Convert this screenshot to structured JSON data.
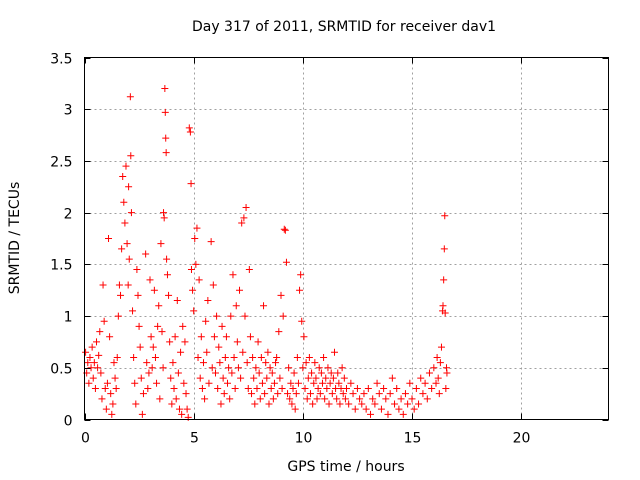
{
  "chart_data": {
    "type": "scatter",
    "title": "Day 317 of 2011, SRMTID for receiver dav1",
    "xlabel": "GPS time / hours",
    "ylabel": "SRMTID / TECUs",
    "xlim": [
      0,
      24
    ],
    "ylim": [
      0,
      3.5
    ],
    "x_ticks": [
      0,
      5,
      10,
      15,
      20
    ],
    "x_tick_labels": [
      "0",
      "5",
      "10",
      "15",
      "20"
    ],
    "y_ticks": [
      0,
      0.5,
      1,
      1.5,
      2,
      2.5,
      3,
      3.5
    ],
    "y_tick_labels": [
      "0",
      "0.5",
      "1",
      "1.5",
      "2",
      "2.5",
      "3",
      "3.5"
    ],
    "grid": true,
    "series": [
      {
        "name": "dav1",
        "marker": "+",
        "color": "#ff0000",
        "points": [
          [
            0.05,
            0.65
          ],
          [
            0.1,
            0.45
          ],
          [
            0.15,
            0.55
          ],
          [
            0.2,
            0.35
          ],
          [
            0.25,
            0.6
          ],
          [
            0.3,
            0.5
          ],
          [
            0.35,
            0.7
          ],
          [
            0.4,
            0.4
          ],
          [
            0.45,
            0.55
          ],
          [
            0.5,
            0.3
          ],
          [
            0.55,
            0.75
          ],
          [
            0.6,
            0.5
          ],
          [
            0.65,
            0.62
          ],
          [
            0.7,
            0.85
          ],
          [
            0.75,
            0.45
          ],
          [
            0.8,
            0.2
          ],
          [
            0.85,
            1.3
          ],
          [
            0.9,
            0.95
          ],
          [
            0.95,
            0.3
          ],
          [
            1.0,
            0.1
          ],
          [
            1.05,
            0.35
          ],
          [
            1.1,
            1.75
          ],
          [
            1.15,
            0.8
          ],
          [
            1.2,
            0.25
          ],
          [
            1.25,
            0.05
          ],
          [
            1.3,
            0.15
          ],
          [
            1.35,
            0.55
          ],
          [
            1.4,
            0.4
          ],
          [
            1.45,
            0.3
          ],
          [
            1.5,
            0.6
          ],
          [
            1.55,
            1.0
          ],
          [
            1.6,
            1.3
          ],
          [
            1.65,
            1.2
          ],
          [
            1.7,
            1.65
          ],
          [
            1.75,
            2.35
          ],
          [
            1.8,
            2.1
          ],
          [
            1.85,
            1.9
          ],
          [
            1.9,
            2.45
          ],
          [
            1.95,
            1.7
          ],
          [
            2.0,
            1.3
          ],
          [
            2.02,
            2.25
          ],
          [
            2.05,
            1.55
          ],
          [
            2.1,
            3.12
          ],
          [
            2.12,
            2.55
          ],
          [
            2.15,
            2.0
          ],
          [
            2.2,
            1.05
          ],
          [
            2.25,
            0.6
          ],
          [
            2.3,
            0.35
          ],
          [
            2.35,
            0.15
          ],
          [
            2.4,
            1.45
          ],
          [
            2.45,
            1.2
          ],
          [
            2.5,
            0.9
          ],
          [
            2.55,
            0.7
          ],
          [
            2.6,
            0.4
          ],
          [
            2.65,
            0.05
          ],
          [
            2.7,
            0.25
          ],
          [
            2.8,
            1.6
          ],
          [
            2.85,
            0.55
          ],
          [
            2.9,
            0.3
          ],
          [
            2.95,
            0.45
          ],
          [
            3.0,
            1.35
          ],
          [
            3.05,
            0.8
          ],
          [
            3.1,
            0.5
          ],
          [
            3.15,
            0.7
          ],
          [
            3.2,
            1.25
          ],
          [
            3.25,
            0.6
          ],
          [
            3.3,
            0.35
          ],
          [
            3.35,
            0.9
          ],
          [
            3.4,
            1.1
          ],
          [
            3.45,
            0.2
          ],
          [
            3.5,
            1.7
          ],
          [
            3.55,
            0.85
          ],
          [
            3.6,
            0.5
          ],
          [
            3.62,
            2.0
          ],
          [
            3.65,
            1.95
          ],
          [
            3.68,
            3.2
          ],
          [
            3.7,
            2.97
          ],
          [
            3.72,
            2.72
          ],
          [
            3.74,
            2.58
          ],
          [
            3.76,
            1.55
          ],
          [
            3.8,
            1.4
          ],
          [
            3.85,
            1.2
          ],
          [
            3.9,
            0.75
          ],
          [
            3.95,
            0.4
          ],
          [
            4.0,
            0.15
          ],
          [
            4.05,
            0.55
          ],
          [
            4.1,
            0.3
          ],
          [
            4.15,
            0.8
          ],
          [
            4.2,
            0.2
          ],
          [
            4.25,
            1.15
          ],
          [
            4.3,
            0.45
          ],
          [
            4.35,
            0.1
          ],
          [
            4.4,
            0.65
          ],
          [
            4.45,
            0.05
          ],
          [
            4.5,
            0.9
          ],
          [
            4.55,
            0.35
          ],
          [
            4.6,
            0.75
          ],
          [
            4.65,
            0.25
          ],
          [
            4.7,
            0.1
          ],
          [
            4.75,
            0.02
          ],
          [
            4.8,
            2.82
          ],
          [
            4.85,
            2.78
          ],
          [
            4.88,
            2.28
          ],
          [
            4.9,
            1.45
          ],
          [
            4.95,
            1.25
          ],
          [
            5.0,
            1.05
          ],
          [
            5.05,
            1.75
          ],
          [
            5.1,
            1.5
          ],
          [
            5.15,
            1.85
          ],
          [
            5.2,
            0.6
          ],
          [
            5.25,
            1.35
          ],
          [
            5.3,
            0.4
          ],
          [
            5.35,
            0.8
          ],
          [
            5.4,
            0.3
          ],
          [
            5.45,
            0.55
          ],
          [
            5.5,
            0.2
          ],
          [
            5.55,
            0.95
          ],
          [
            5.6,
            0.65
          ],
          [
            5.65,
            1.15
          ],
          [
            5.7,
            0.35
          ],
          [
            5.8,
            1.72
          ],
          [
            5.85,
            0.5
          ],
          [
            5.9,
            1.3
          ],
          [
            5.95,
            0.8
          ],
          [
            6.0,
            0.45
          ],
          [
            6.05,
            1.0
          ],
          [
            6.1,
            0.3
          ],
          [
            6.15,
            0.7
          ],
          [
            6.2,
            0.55
          ],
          [
            6.25,
            0.15
          ],
          [
            6.3,
            0.9
          ],
          [
            6.35,
            0.4
          ],
          [
            6.4,
            0.25
          ],
          [
            6.45,
            0.6
          ],
          [
            6.5,
            0.8
          ],
          [
            6.55,
            0.35
          ],
          [
            6.6,
            0.5
          ],
          [
            6.65,
            0.2
          ],
          [
            6.7,
            1.0
          ],
          [
            6.75,
            0.45
          ],
          [
            6.8,
            1.4
          ],
          [
            6.85,
            0.6
          ],
          [
            6.9,
            0.3
          ],
          [
            6.95,
            1.1
          ],
          [
            7.0,
            0.75
          ],
          [
            7.05,
            0.5
          ],
          [
            7.1,
            1.25
          ],
          [
            7.15,
            0.4
          ],
          [
            7.2,
            1.9
          ],
          [
            7.25,
            0.65
          ],
          [
            7.3,
            1.95
          ],
          [
            7.35,
            1.0
          ],
          [
            7.4,
            2.05
          ],
          [
            7.45,
            0.55
          ],
          [
            7.5,
            0.3
          ],
          [
            7.55,
            1.45
          ],
          [
            7.6,
            0.8
          ],
          [
            7.65,
            0.25
          ],
          [
            7.7,
            0.6
          ],
          [
            7.75,
            0.4
          ],
          [
            7.8,
            0.15
          ],
          [
            7.85,
            0.5
          ],
          [
            7.9,
            0.3
          ],
          [
            7.95,
            0.75
          ],
          [
            8.0,
            0.45
          ],
          [
            8.05,
            0.2
          ],
          [
            8.1,
            0.6
          ],
          [
            8.15,
            0.35
          ],
          [
            8.2,
            1.1
          ],
          [
            8.25,
            0.25
          ],
          [
            8.3,
            0.55
          ],
          [
            8.35,
            0.4
          ],
          [
            8.4,
            0.65
          ],
          [
            8.45,
            0.15
          ],
          [
            8.5,
            0.5
          ],
          [
            8.55,
            0.3
          ],
          [
            8.6,
            0.45
          ],
          [
            8.65,
            0.2
          ],
          [
            8.7,
            0.35
          ],
          [
            8.75,
            0.55
          ],
          [
            8.8,
            0.6
          ],
          [
            8.85,
            0.25
          ],
          [
            8.9,
            0.85
          ],
          [
            8.95,
            0.4
          ],
          [
            9.0,
            1.2
          ],
          [
            9.05,
            0.3
          ],
          [
            9.1,
            1.0
          ],
          [
            9.15,
            1.84
          ],
          [
            9.2,
            1.83
          ],
          [
            9.25,
            1.52
          ],
          [
            9.3,
            0.25
          ],
          [
            9.35,
            0.5
          ],
          [
            9.4,
            0.2
          ],
          [
            9.45,
            0.35
          ],
          [
            9.5,
            0.15
          ],
          [
            9.55,
            0.3
          ],
          [
            9.6,
            0.45
          ],
          [
            9.65,
            0.1
          ],
          [
            9.7,
            0.25
          ],
          [
            9.75,
            0.6
          ],
          [
            9.8,
            0.35
          ],
          [
            9.85,
            1.25
          ],
          [
            9.9,
            1.4
          ],
          [
            9.95,
            0.95
          ],
          [
            10.0,
            0.5
          ],
          [
            10.05,
            0.8
          ],
          [
            10.1,
            0.3
          ],
          [
            10.15,
            0.55
          ],
          [
            10.2,
            0.2
          ],
          [
            10.25,
            0.4
          ],
          [
            10.3,
            0.6
          ],
          [
            10.35,
            0.25
          ],
          [
            10.4,
            0.45
          ],
          [
            10.45,
            0.15
          ],
          [
            10.5,
            0.35
          ],
          [
            10.55,
            0.55
          ],
          [
            10.6,
            0.4
          ],
          [
            10.65,
            0.2
          ],
          [
            10.7,
            0.3
          ],
          [
            10.75,
            0.5
          ],
          [
            10.8,
            0.25
          ],
          [
            10.85,
            0.45
          ],
          [
            10.9,
            0.35
          ],
          [
            10.95,
            0.6
          ],
          [
            11.0,
            0.2
          ],
          [
            11.05,
            0.4
          ],
          [
            11.1,
            0.3
          ],
          [
            11.15,
            0.5
          ],
          [
            11.2,
            0.15
          ],
          [
            11.25,
            0.35
          ],
          [
            11.3,
            0.45
          ],
          [
            11.35,
            0.25
          ],
          [
            11.4,
            0.4
          ],
          [
            11.45,
            0.65
          ],
          [
            11.5,
            0.3
          ],
          [
            11.55,
            0.2
          ],
          [
            11.6,
            0.45
          ],
          [
            11.65,
            0.35
          ],
          [
            11.7,
            0.15
          ],
          [
            11.75,
            0.3
          ],
          [
            11.8,
            0.5
          ],
          [
            11.85,
            0.25
          ],
          [
            11.9,
            0.4
          ],
          [
            11.95,
            0.2
          ],
          [
            12.0,
            0.3
          ],
          [
            12.1,
            0.15
          ],
          [
            12.2,
            0.35
          ],
          [
            12.3,
            0.25
          ],
          [
            12.4,
            0.1
          ],
          [
            12.5,
            0.3
          ],
          [
            12.6,
            0.2
          ],
          [
            12.7,
            0.15
          ],
          [
            12.8,
            0.25
          ],
          [
            12.9,
            0.1
          ],
          [
            13.0,
            0.3
          ],
          [
            13.1,
            0.05
          ],
          [
            13.2,
            0.2
          ],
          [
            13.3,
            0.15
          ],
          [
            13.4,
            0.35
          ],
          [
            13.5,
            0.25
          ],
          [
            13.6,
            0.1
          ],
          [
            13.7,
            0.3
          ],
          [
            13.8,
            0.2
          ],
          [
            13.9,
            0.05
          ],
          [
            14.0,
            0.25
          ],
          [
            14.1,
            0.4
          ],
          [
            14.2,
            0.15
          ],
          [
            14.3,
            0.3
          ],
          [
            14.4,
            0.1
          ],
          [
            14.5,
            0.2
          ],
          [
            14.6,
            0.05
          ],
          [
            14.7,
            0.25
          ],
          [
            14.8,
            0.15
          ],
          [
            14.9,
            0.35
          ],
          [
            15.0,
            0.2
          ],
          [
            15.1,
            0.1
          ],
          [
            15.2,
            0.3
          ],
          [
            15.3,
            0.15
          ],
          [
            15.4,
            0.4
          ],
          [
            15.5,
            0.25
          ],
          [
            15.6,
            0.35
          ],
          [
            15.7,
            0.2
          ],
          [
            15.8,
            0.45
          ],
          [
            15.9,
            0.3
          ],
          [
            16.0,
            0.5
          ],
          [
            16.1,
            0.35
          ],
          [
            16.15,
            0.6
          ],
          [
            16.2,
            0.4
          ],
          [
            16.25,
            0.25
          ],
          [
            16.3,
            0.55
          ],
          [
            16.35,
            0.7
          ],
          [
            16.4,
            1.05
          ],
          [
            16.42,
            1.1
          ],
          [
            16.45,
            1.35
          ],
          [
            16.48,
            1.65
          ],
          [
            16.5,
            1.97
          ],
          [
            16.52,
            1.03
          ],
          [
            16.55,
            0.3
          ],
          [
            16.58,
            0.5
          ],
          [
            16.6,
            0.45
          ]
        ]
      }
    ]
  }
}
